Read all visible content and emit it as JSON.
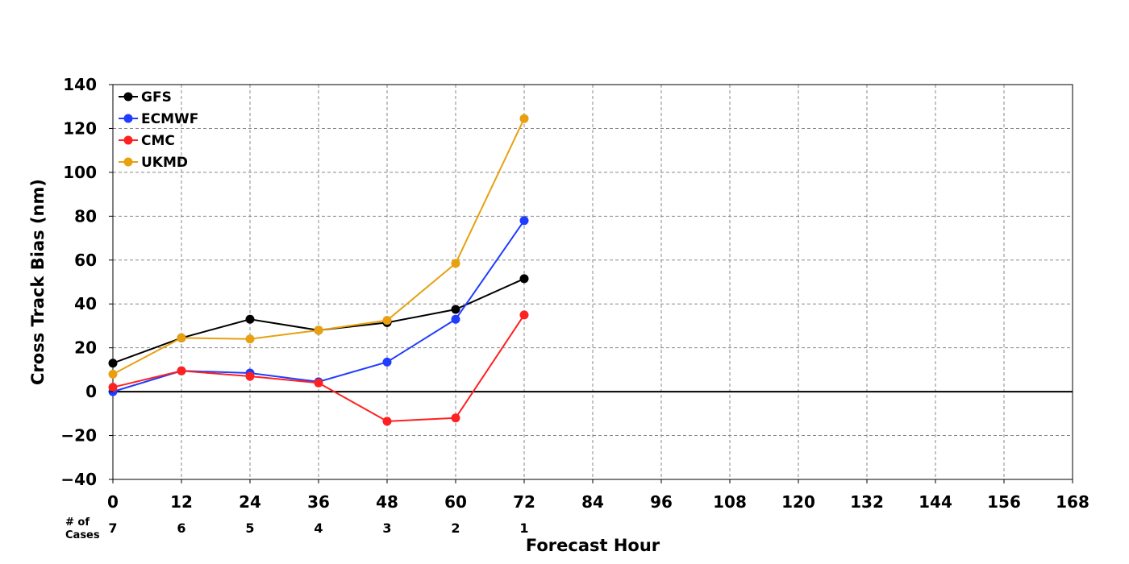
{
  "chart_data": {
    "type": "line",
    "title": "",
    "xlabel": "Forecast Hour",
    "ylabel": "Cross Track Bias (nm)",
    "xlim": [
      0,
      168
    ],
    "ylim": [
      -40,
      140
    ],
    "x_ticks": [
      0,
      12,
      24,
      36,
      48,
      60,
      72,
      84,
      96,
      108,
      120,
      132,
      144,
      156,
      168
    ],
    "y_ticks": [
      -40,
      -20,
      0,
      20,
      40,
      60,
      80,
      100,
      120,
      140
    ],
    "y_tick_labels": [
      "−40",
      "−20",
      "0",
      "20",
      "40",
      "60",
      "80",
      "100",
      "120",
      "140"
    ],
    "grid": true,
    "legend_position": "top-left",
    "x": [
      0,
      12,
      24,
      36,
      48,
      60,
      72
    ],
    "series": [
      {
        "name": "GFS",
        "color": "#000000",
        "values": [
          13,
          24.5,
          33,
          28,
          31.5,
          37.5,
          51.5
        ]
      },
      {
        "name": "ECMWF",
        "color": "#1f3cff",
        "values": [
          0,
          9.5,
          8.5,
          4.5,
          13.5,
          33,
          78
        ]
      },
      {
        "name": "CMC",
        "color": "#ff2020",
        "values": [
          2,
          9.5,
          7,
          4,
          -13.5,
          -12,
          35
        ]
      },
      {
        "name": "UKMD",
        "color": "#e8a010",
        "values": [
          8,
          24.5,
          24,
          28,
          32.5,
          58.5,
          124.5
        ]
      }
    ],
    "cases": {
      "label_line1": "# of",
      "label_line2": "Cases",
      "x": [
        0,
        12,
        24,
        36,
        48,
        60,
        72
      ],
      "values": [
        "7",
        "6",
        "5",
        "4",
        "3",
        "2",
        "1"
      ]
    }
  }
}
